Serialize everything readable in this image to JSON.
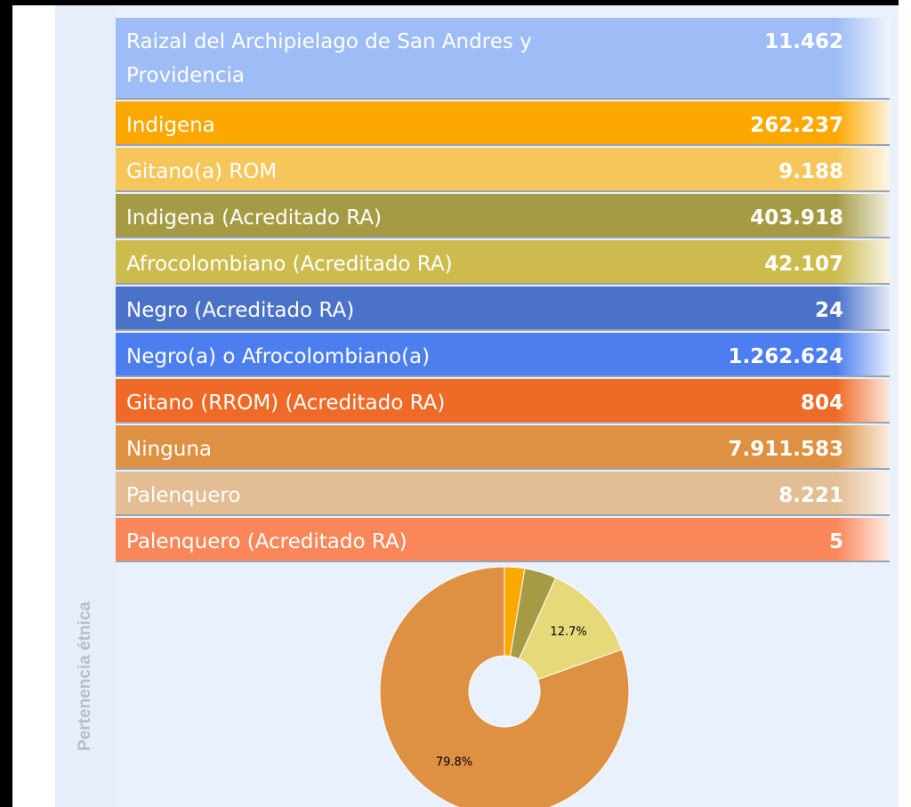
{
  "sidebar_label": "Pertenencia étnica",
  "table": {
    "rows": [
      {
        "label": "Raizal del Archipielago de San Andres y Providencia",
        "value": "11.462",
        "color": "#9ebcf5"
      },
      {
        "label": "Indigena",
        "value": "262.237",
        "color": "#fca800"
      },
      {
        "label": "Gitano(a) ROM",
        "value": "9.188",
        "color": "#f6c65a"
      },
      {
        "label": "Indigena (Acreditado RA)",
        "value": "403.918",
        "color": "#a59b44"
      },
      {
        "label": "Afrocolombiano (Acreditado RA)",
        "value": "42.107",
        "color": "#cdbb4e"
      },
      {
        "label": "Negro (Acreditado RA)",
        "value": "24",
        "color": "#4a72c8"
      },
      {
        "label": "Negro(a) o Afrocolombiano(a)",
        "value": "1.262.624",
        "color": "#4c7ef0"
      },
      {
        "label": "Gitano (RROM) (Acreditado RA)",
        "value": "804",
        "color": "#f06a27"
      },
      {
        "label": "Ninguna",
        "value": "7.911.583",
        "color": "#de9142"
      },
      {
        "label": "Palenquero",
        "value": "8.221",
        "color": "#e3bd93"
      },
      {
        "label": "Palenquero (Acreditado RA)",
        "value": "5",
        "color": "#fa875a"
      }
    ]
  },
  "chart_data": {
    "type": "pie",
    "values": [
      2.6,
      4.1,
      12.7,
      79.8
    ],
    "value_labels": [
      null,
      null,
      "12.7%",
      "79.8%"
    ],
    "colors": [
      "#fca800",
      "#a59b44",
      "#e6d97a",
      "#de9142"
    ]
  }
}
